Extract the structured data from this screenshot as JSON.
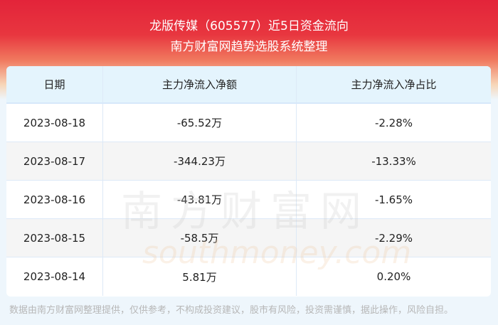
{
  "header": {
    "title": "龙版传媒（605577）近5日资金流向",
    "subtitle": "南方财富网趋势选股系统整理"
  },
  "table": {
    "columns": [
      "日期",
      "主力净流入净额",
      "主力净流入净占比"
    ],
    "rows": [
      [
        "2023-08-18",
        "-65.52万",
        "-2.28%"
      ],
      [
        "2023-08-17",
        "-344.23万",
        "-13.33%"
      ],
      [
        "2023-08-16",
        "-43.81万",
        "-1.65%"
      ],
      [
        "2023-08-15",
        "-58.5万",
        "-2.29%"
      ],
      [
        "2023-08-14",
        "5.81万",
        "0.20%"
      ]
    ]
  },
  "watermark": {
    "cn": "南方财富网",
    "en": "southmoney.com"
  },
  "footer": "数据由南方财富网整理提供，仅供参考，不构成投资建议，股市有风险，投资需谨慎，据此操作，风险自担。"
}
